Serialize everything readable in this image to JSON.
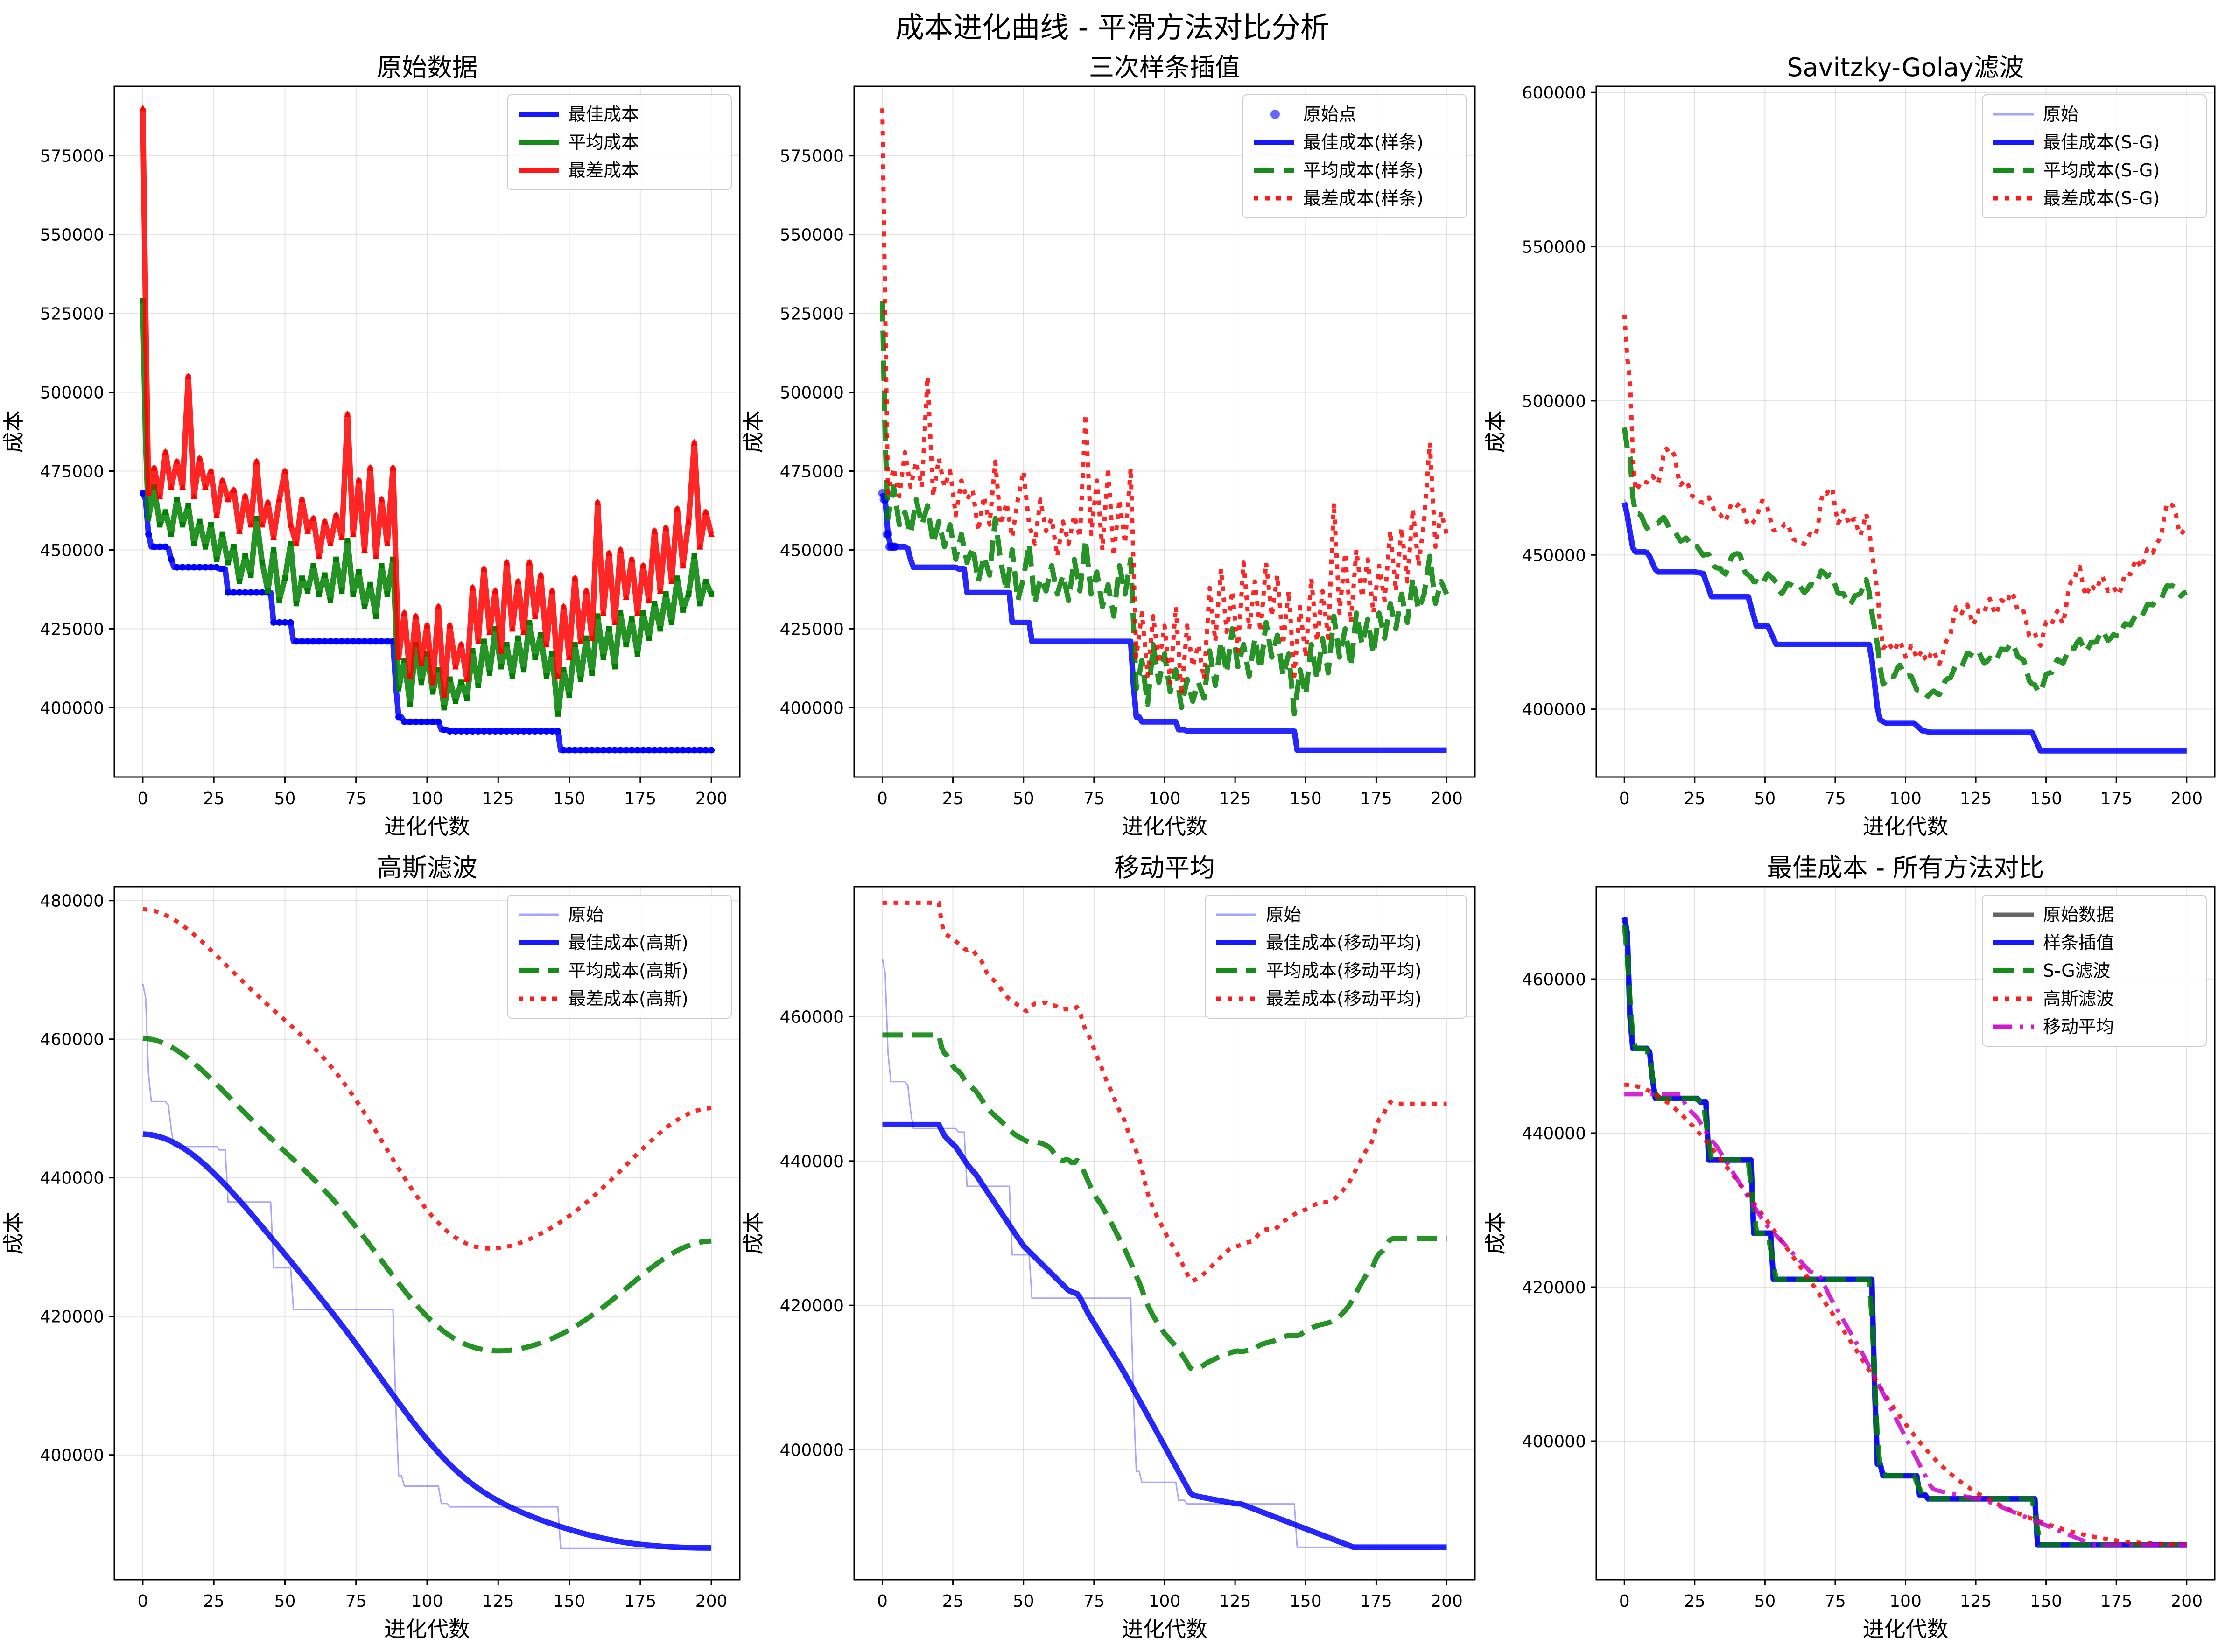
{
  "figure": {
    "title": "成本进化曲线 - 平滑方法对比分析"
  },
  "chart_data": [
    {
      "type": "line",
      "title": "原始数据",
      "xlabel": "进化代数",
      "ylabel": "成本",
      "xlim": [
        -10,
        210
      ],
      "ylim": [
        378000,
        597000
      ],
      "xticks": [
        0,
        25,
        50,
        75,
        100,
        125,
        150,
        175,
        200
      ],
      "yticks": [
        400000,
        425000,
        450000,
        475000,
        500000,
        525000,
        550000,
        575000
      ],
      "grid": true,
      "legend": "top-right",
      "series": [
        {
          "name": "最佳成本",
          "key": "best",
          "color": "#0000ff",
          "style": "solid",
          "marker": "o"
        },
        {
          "name": "平均成本",
          "key": "avg",
          "color": "#008000",
          "style": "solid",
          "marker": "s"
        },
        {
          "name": "最差成本",
          "key": "worst",
          "color": "#ff0000",
          "style": "solid",
          "marker": "^"
        }
      ]
    },
    {
      "type": "line",
      "title": "三次样条插值",
      "xlabel": "进化代数",
      "ylabel": "成本",
      "xlim": [
        -10,
        210
      ],
      "ylim": [
        378000,
        597000
      ],
      "xticks": [
        0,
        25,
        50,
        75,
        100,
        125,
        150,
        175,
        200
      ],
      "yticks": [
        400000,
        425000,
        450000,
        475000,
        500000,
        525000,
        550000,
        575000
      ],
      "grid": true,
      "legend": "top-right",
      "series": [
        {
          "name": "原始点",
          "key": "best_points",
          "color": "#0000ff",
          "style": "points"
        },
        {
          "name": "最佳成本(样条)",
          "key": "best",
          "color": "#0000ff",
          "style": "solid"
        },
        {
          "name": "平均成本(样条)",
          "key": "avg",
          "color": "#008000",
          "style": "dashed"
        },
        {
          "name": "最差成本(样条)",
          "key": "worst",
          "color": "#ff0000",
          "style": "dotted"
        }
      ]
    },
    {
      "type": "line",
      "title": "Savitzky-Golay滤波",
      "xlabel": "进化代数",
      "ylabel": "成本",
      "xlim": [
        -10,
        210
      ],
      "ylim": [
        378000,
        602000
      ],
      "xticks": [
        0,
        25,
        50,
        75,
        100,
        125,
        150,
        175,
        200
      ],
      "yticks": [
        400000,
        450000,
        500000,
        550000,
        600000
      ],
      "grid": true,
      "legend": "top-right",
      "series": [
        {
          "name": "原始",
          "key": "best_raw",
          "color": "#0000ff",
          "style": "thin"
        },
        {
          "name": "最佳成本(S-G)",
          "key": "best",
          "color": "#0000ff",
          "style": "solid"
        },
        {
          "name": "平均成本(S-G)",
          "key": "avg",
          "color": "#008000",
          "style": "dashed"
        },
        {
          "name": "最差成本(S-G)",
          "key": "worst",
          "color": "#ff0000",
          "style": "dotted"
        }
      ]
    },
    {
      "type": "line",
      "title": "高斯滤波",
      "xlabel": "进化代数",
      "ylabel": "成本",
      "xlim": [
        -10,
        210
      ],
      "ylim": [
        382000,
        482000
      ],
      "xticks": [
        0,
        25,
        50,
        75,
        100,
        125,
        150,
        175,
        200
      ],
      "yticks": [
        400000,
        420000,
        440000,
        460000,
        480000
      ],
      "grid": true,
      "legend": "top-right",
      "series": [
        {
          "name": "原始",
          "key": "best_raw",
          "color": "#0000ff",
          "style": "thin"
        },
        {
          "name": "最佳成本(高斯)",
          "key": "best",
          "color": "#0000ff",
          "style": "solid"
        },
        {
          "name": "平均成本(高斯)",
          "key": "avg",
          "color": "#008000",
          "style": "dashed"
        },
        {
          "name": "最差成本(高斯)",
          "key": "worst",
          "color": "#ff0000",
          "style": "dotted"
        }
      ]
    },
    {
      "type": "line",
      "title": "移动平均",
      "xlabel": "进化代数",
      "ylabel": "成本",
      "xlim": [
        -10,
        210
      ],
      "ylim": [
        382000,
        478000
      ],
      "xticks": [
        0,
        25,
        50,
        75,
        100,
        125,
        150,
        175,
        200
      ],
      "yticks": [
        400000,
        420000,
        440000,
        460000
      ],
      "grid": true,
      "legend": "top-right",
      "series": [
        {
          "name": "原始",
          "key": "best_raw",
          "color": "#0000ff",
          "style": "thin"
        },
        {
          "name": "最佳成本(移动平均)",
          "key": "best",
          "color": "#0000ff",
          "style": "solid"
        },
        {
          "name": "平均成本(移动平均)",
          "key": "avg",
          "color": "#008000",
          "style": "dashed"
        },
        {
          "name": "最差成本(移动平均)",
          "key": "worst",
          "color": "#ff0000",
          "style": "dotted"
        }
      ]
    },
    {
      "type": "line",
      "title": "最佳成本 - 所有方法对比",
      "xlabel": "进化代数",
      "ylabel": "成本",
      "xlim": [
        -10,
        210
      ],
      "ylim": [
        382000,
        472000
      ],
      "xticks": [
        0,
        25,
        50,
        75,
        100,
        125,
        150,
        175,
        200
      ],
      "yticks": [
        400000,
        420000,
        440000,
        460000
      ],
      "grid": true,
      "legend": "top-right",
      "series": [
        {
          "name": "原始数据",
          "key": "raw",
          "color": "#000000",
          "style": "solid-marker"
        },
        {
          "name": "样条插值",
          "key": "spline",
          "color": "#0000ff",
          "style": "solid"
        },
        {
          "name": "S-G滤波",
          "key": "sg",
          "color": "#008000",
          "style": "dashed"
        },
        {
          "name": "高斯滤波",
          "key": "gauss",
          "color": "#ff0000",
          "style": "dotted"
        },
        {
          "name": "移动平均",
          "key": "ma",
          "color": "#cc00cc",
          "style": "dashdot"
        }
      ]
    }
  ],
  "raw_series": {
    "best_steps": [
      [
        0,
        468000
      ],
      [
        1,
        466000
      ],
      [
        2,
        455000
      ],
      [
        3,
        451000
      ],
      [
        9,
        450500
      ],
      [
        10,
        447000
      ],
      [
        11,
        444500
      ],
      [
        20,
        444500
      ],
      [
        27,
        444000
      ],
      [
        30,
        436500
      ],
      [
        45,
        436500
      ],
      [
        46,
        427000
      ],
      [
        53,
        421000
      ],
      [
        88,
        421000
      ],
      [
        89,
        407000
      ],
      [
        90,
        397000
      ],
      [
        92,
        395500
      ],
      [
        104,
        395500
      ],
      [
        105,
        393000
      ],
      [
        108,
        392500
      ],
      [
        146,
        392500
      ],
      [
        147,
        386500
      ],
      [
        200,
        386500
      ]
    ],
    "avg_points": [
      [
        0,
        529000
      ],
      [
        1,
        485000
      ],
      [
        2,
        460000
      ],
      [
        4,
        470000
      ],
      [
        6,
        458000
      ],
      [
        8,
        462000
      ],
      [
        10,
        455000
      ],
      [
        12,
        466000
      ],
      [
        14,
        458000
      ],
      [
        16,
        464000
      ],
      [
        18,
        452000
      ],
      [
        20,
        459000
      ],
      [
        22,
        451000
      ],
      [
        24,
        458000
      ],
      [
        26,
        447000
      ],
      [
        28,
        455000
      ],
      [
        30,
        446000
      ],
      [
        32,
        451000
      ],
      [
        34,
        440000
      ],
      [
        36,
        448000
      ],
      [
        38,
        442000
      ],
      [
        40,
        460000
      ],
      [
        42,
        446000
      ],
      [
        44,
        437000
      ],
      [
        46,
        450000
      ],
      [
        48,
        434000
      ],
      [
        50,
        441000
      ],
      [
        52,
        452000
      ],
      [
        54,
        433000
      ],
      [
        56,
        441000
      ],
      [
        58,
        437000
      ],
      [
        60,
        445000
      ],
      [
        62,
        436000
      ],
      [
        64,
        442000
      ],
      [
        66,
        434000
      ],
      [
        68,
        447000
      ],
      [
        70,
        437000
      ],
      [
        72,
        453000
      ],
      [
        74,
        436000
      ],
      [
        76,
        443000
      ],
      [
        78,
        432000
      ],
      [
        80,
        439000
      ],
      [
        82,
        429000
      ],
      [
        84,
        445000
      ],
      [
        86,
        436000
      ],
      [
        88,
        447000
      ],
      [
        90,
        406000
      ],
      [
        92,
        415000
      ],
      [
        94,
        401000
      ],
      [
        96,
        420000
      ],
      [
        98,
        408000
      ],
      [
        100,
        417000
      ],
      [
        102,
        405000
      ],
      [
        104,
        412000
      ],
      [
        106,
        400000
      ],
      [
        108,
        409000
      ],
      [
        110,
        402000
      ],
      [
        112,
        408000
      ],
      [
        114,
        403000
      ],
      [
        116,
        418000
      ],
      [
        118,
        407000
      ],
      [
        120,
        421000
      ],
      [
        122,
        411000
      ],
      [
        124,
        425000
      ],
      [
        126,
        413000
      ],
      [
        128,
        420000
      ],
      [
        130,
        410000
      ],
      [
        132,
        422000
      ],
      [
        134,
        412000
      ],
      [
        136,
        427000
      ],
      [
        138,
        416000
      ],
      [
        140,
        423000
      ],
      [
        142,
        410000
      ],
      [
        144,
        417000
      ],
      [
        146,
        398000
      ],
      [
        148,
        412000
      ],
      [
        150,
        404000
      ],
      [
        152,
        420000
      ],
      [
        154,
        409000
      ],
      [
        156,
        422000
      ],
      [
        158,
        411000
      ],
      [
        160,
        429000
      ],
      [
        162,
        416000
      ],
      [
        164,
        425000
      ],
      [
        166,
        413000
      ],
      [
        168,
        430000
      ],
      [
        170,
        420000
      ],
      [
        172,
        428000
      ],
      [
        174,
        417000
      ],
      [
        176,
        430000
      ],
      [
        178,
        422000
      ],
      [
        180,
        433000
      ],
      [
        182,
        425000
      ],
      [
        184,
        436000
      ],
      [
        186,
        427000
      ],
      [
        188,
        441000
      ],
      [
        190,
        431000
      ],
      [
        192,
        436000
      ],
      [
        194,
        448000
      ],
      [
        196,
        433000
      ],
      [
        198,
        440000
      ],
      [
        200,
        436000
      ]
    ],
    "worst_points": [
      [
        0,
        590000
      ],
      [
        1,
        526000
      ],
      [
        2,
        468000
      ],
      [
        4,
        476000
      ],
      [
        6,
        467000
      ],
      [
        8,
        481000
      ],
      [
        10,
        470000
      ],
      [
        12,
        478000
      ],
      [
        14,
        470000
      ],
      [
        16,
        505000
      ],
      [
        18,
        467000
      ],
      [
        20,
        479000
      ],
      [
        22,
        470000
      ],
      [
        24,
        475000
      ],
      [
        26,
        461000
      ],
      [
        28,
        472000
      ],
      [
        30,
        466000
      ],
      [
        32,
        469000
      ],
      [
        34,
        456000
      ],
      [
        36,
        467000
      ],
      [
        38,
        458000
      ],
      [
        40,
        478000
      ],
      [
        42,
        458000
      ],
      [
        44,
        465000
      ],
      [
        46,
        454000
      ],
      [
        48,
        466000
      ],
      [
        50,
        475000
      ],
      [
        52,
        458000
      ],
      [
        54,
        452000
      ],
      [
        56,
        466000
      ],
      [
        58,
        456000
      ],
      [
        60,
        460000
      ],
      [
        62,
        448000
      ],
      [
        64,
        459000
      ],
      [
        66,
        452000
      ],
      [
        68,
        461000
      ],
      [
        70,
        454000
      ],
      [
        72,
        493000
      ],
      [
        74,
        455000
      ],
      [
        76,
        472000
      ],
      [
        78,
        450000
      ],
      [
        80,
        476000
      ],
      [
        82,
        448000
      ],
      [
        84,
        466000
      ],
      [
        86,
        452000
      ],
      [
        88,
        476000
      ],
      [
        90,
        416000
      ],
      [
        92,
        430000
      ],
      [
        94,
        410000
      ],
      [
        96,
        429000
      ],
      [
        98,
        414000
      ],
      [
        100,
        426000
      ],
      [
        102,
        408000
      ],
      [
        104,
        432000
      ],
      [
        106,
        404000
      ],
      [
        108,
        426000
      ],
      [
        110,
        413000
      ],
      [
        112,
        420000
      ],
      [
        114,
        409000
      ],
      [
        116,
        438000
      ],
      [
        118,
        421000
      ],
      [
        120,
        444000
      ],
      [
        122,
        424000
      ],
      [
        124,
        437000
      ],
      [
        126,
        418000
      ],
      [
        128,
        446000
      ],
      [
        130,
        425000
      ],
      [
        132,
        440000
      ],
      [
        134,
        424000
      ],
      [
        136,
        446000
      ],
      [
        138,
        429000
      ],
      [
        140,
        442000
      ],
      [
        142,
        420000
      ],
      [
        144,
        437000
      ],
      [
        146,
        410000
      ],
      [
        148,
        432000
      ],
      [
        150,
        416000
      ],
      [
        152,
        441000
      ],
      [
        154,
        421000
      ],
      [
        156,
        437000
      ],
      [
        158,
        422000
      ],
      [
        160,
        465000
      ],
      [
        162,
        430000
      ],
      [
        164,
        449000
      ],
      [
        166,
        427000
      ],
      [
        168,
        450000
      ],
      [
        170,
        435000
      ],
      [
        172,
        447000
      ],
      [
        174,
        430000
      ],
      [
        176,
        445000
      ],
      [
        178,
        434000
      ],
      [
        180,
        456000
      ],
      [
        182,
        437000
      ],
      [
        184,
        457000
      ],
      [
        186,
        440000
      ],
      [
        188,
        463000
      ],
      [
        190,
        445000
      ],
      [
        192,
        459000
      ],
      [
        194,
        484000
      ],
      [
        196,
        451000
      ],
      [
        198,
        462000
      ],
      [
        200,
        455000
      ]
    ]
  }
}
